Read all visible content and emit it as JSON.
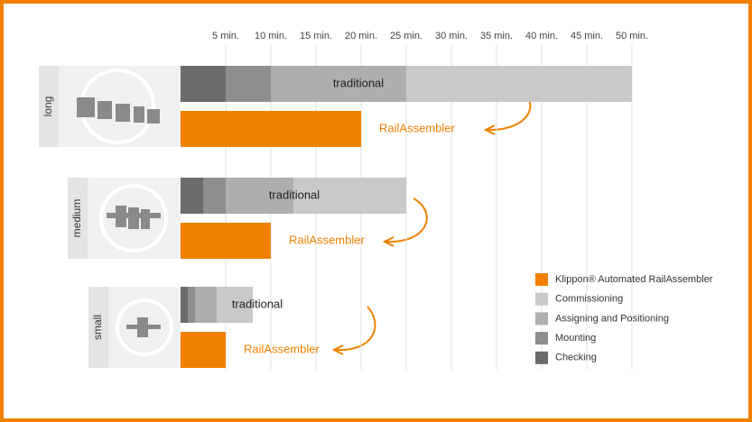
{
  "chart_data": {
    "type": "stacked-hbar",
    "categories": [
      "long",
      "medium",
      "small"
    ],
    "bar_labels": [
      "traditional",
      "RailAssembler"
    ],
    "xlim": [
      0,
      50
    ],
    "xticks": [
      {
        "value": 5,
        "label": "5 min."
      },
      {
        "value": 10,
        "label": "10 min."
      },
      {
        "value": 15,
        "label": "15 min."
      },
      {
        "value": 20,
        "label": "20 min."
      },
      {
        "value": 25,
        "label": "25 min."
      },
      {
        "value": 30,
        "label": "30 min."
      },
      {
        "value": 35,
        "label": "35 min."
      },
      {
        "value": 40,
        "label": "40 min."
      },
      {
        "value": 45,
        "label": "45 min."
      },
      {
        "value": 50,
        "label": "50 min."
      }
    ],
    "grid": true,
    "series": [
      {
        "name": "Checking",
        "color": "#6b6b6b",
        "values": [
          5,
          2.5,
          0.8
        ]
      },
      {
        "name": "Mounting",
        "color": "#8e8e8e",
        "values": [
          5,
          2.5,
          0.8
        ]
      },
      {
        "name": "Assigning and Positioning",
        "color": "#aeaeae",
        "values": [
          15,
          7.5,
          2.4
        ]
      },
      {
        "name": "Commissioning",
        "color": "#c9c9c9",
        "values": [
          25,
          12.5,
          4
        ]
      }
    ],
    "rail_series": {
      "name": "Klippon® Automated RailAssembler",
      "color": "#f08000",
      "values": [
        20,
        10,
        5
      ]
    }
  }
}
